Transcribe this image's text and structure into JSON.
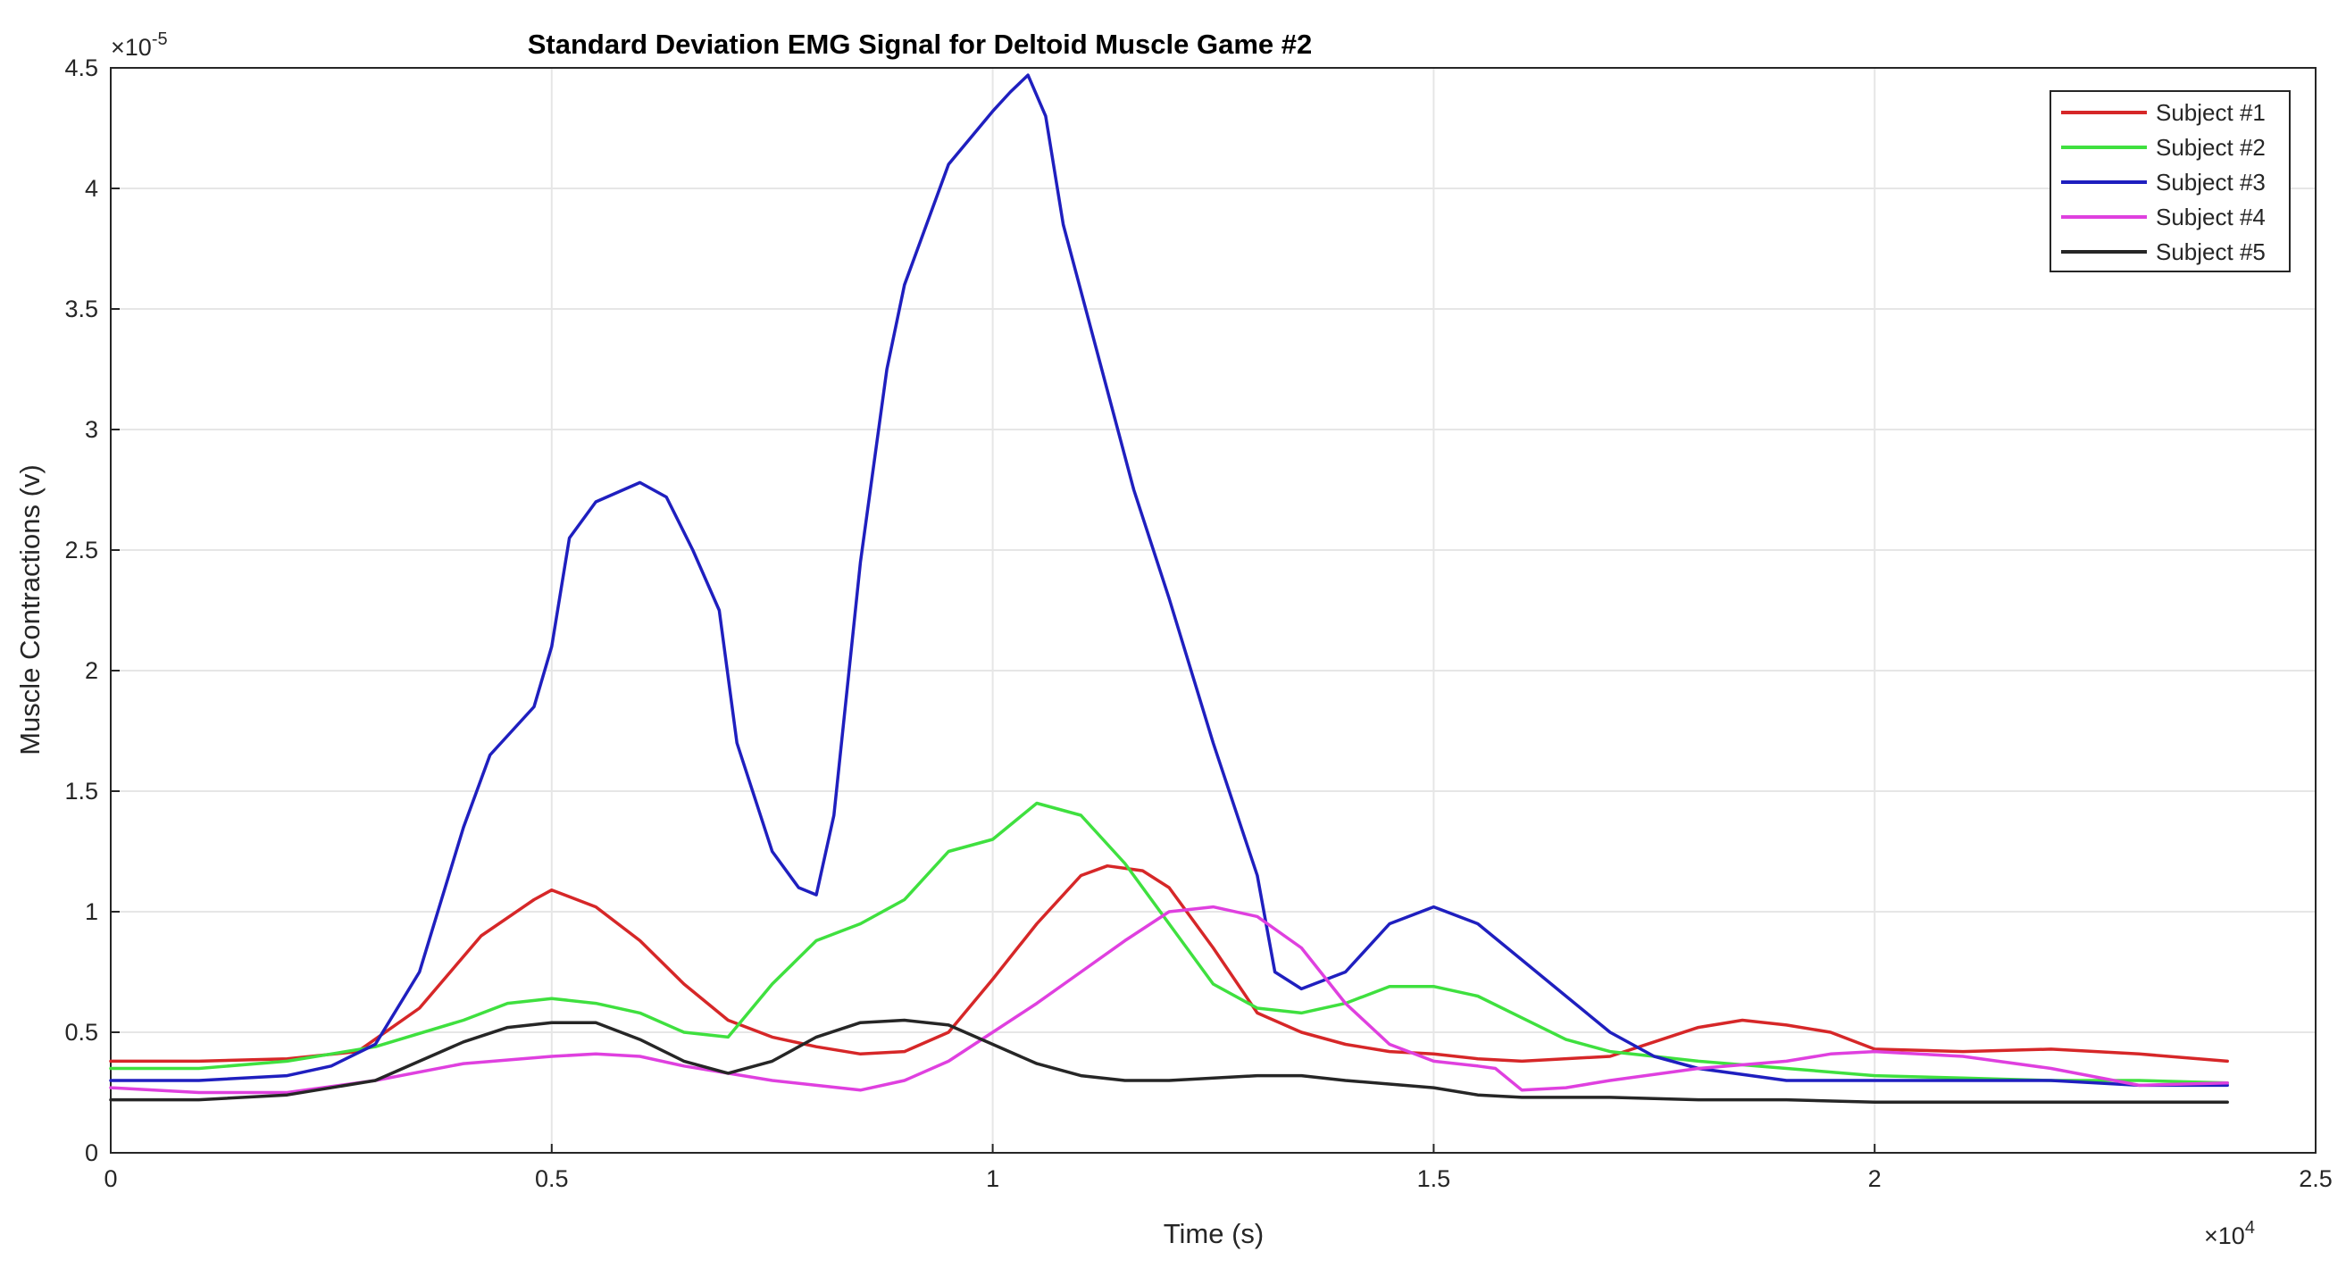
{
  "chart_data": {
    "type": "line",
    "title": "Standard Deviation EMG Signal for Deltoid Muscle Game #2",
    "xlabel": "Time (s)",
    "ylabel": "Muscle Contractions (v)",
    "x_exponent_label": "×10",
    "x_exponent": "4",
    "y_exponent_label": "×10",
    "y_exponent": "-5",
    "xlim": [
      0,
      2.5
    ],
    "ylim": [
      0,
      4.5
    ],
    "x_ticks": [
      "0",
      "0.5",
      "1",
      "1.5",
      "2",
      "2.5"
    ],
    "y_ticks": [
      "0",
      "0.5",
      "1",
      "1.5",
      "2",
      "2.5",
      "3",
      "3.5",
      "4",
      "4.5"
    ],
    "grid": true,
    "legend_position": "top-right",
    "series": [
      {
        "name": "Subject #1",
        "color": "#d62728",
        "x": [
          0,
          0.1,
          0.2,
          0.28,
          0.35,
          0.42,
          0.48,
          0.5,
          0.55,
          0.6,
          0.65,
          0.7,
          0.75,
          0.8,
          0.85,
          0.9,
          0.95,
          1.0,
          1.05,
          1.1,
          1.13,
          1.17,
          1.2,
          1.25,
          1.3,
          1.35,
          1.4,
          1.45,
          1.5,
          1.55,
          1.6,
          1.7,
          1.75,
          1.8,
          1.85,
          1.9,
          1.95,
          2.0,
          2.1,
          2.2,
          2.3,
          2.4
        ],
        "y": [
          0.38,
          0.38,
          0.39,
          0.42,
          0.6,
          0.9,
          1.05,
          1.09,
          1.02,
          0.88,
          0.7,
          0.55,
          0.48,
          0.44,
          0.41,
          0.42,
          0.5,
          0.72,
          0.95,
          1.15,
          1.19,
          1.17,
          1.1,
          0.85,
          0.58,
          0.5,
          0.45,
          0.42,
          0.41,
          0.39,
          0.38,
          0.4,
          0.46,
          0.52,
          0.55,
          0.53,
          0.5,
          0.43,
          0.42,
          0.43,
          0.41,
          0.38
        ]
      },
      {
        "name": "Subject #2",
        "color": "#3fe03f",
        "x": [
          0,
          0.1,
          0.2,
          0.3,
          0.4,
          0.45,
          0.5,
          0.55,
          0.6,
          0.65,
          0.7,
          0.75,
          0.8,
          0.85,
          0.9,
          0.95,
          1.0,
          1.05,
          1.1,
          1.15,
          1.2,
          1.25,
          1.3,
          1.35,
          1.4,
          1.45,
          1.5,
          1.55,
          1.6,
          1.65,
          1.7,
          1.8,
          1.9,
          2.0,
          2.1,
          2.2,
          2.3,
          2.4
        ],
        "y": [
          0.35,
          0.35,
          0.38,
          0.44,
          0.55,
          0.62,
          0.64,
          0.62,
          0.58,
          0.5,
          0.48,
          0.7,
          0.88,
          0.95,
          1.05,
          1.25,
          1.3,
          1.45,
          1.4,
          1.2,
          0.95,
          0.7,
          0.6,
          0.58,
          0.62,
          0.69,
          0.69,
          0.65,
          0.56,
          0.47,
          0.42,
          0.38,
          0.35,
          0.32,
          0.31,
          0.3,
          0.3,
          0.29
        ]
      },
      {
        "name": "Subject #3",
        "color": "#1f1fbf",
        "x": [
          0,
          0.1,
          0.2,
          0.25,
          0.3,
          0.35,
          0.4,
          0.43,
          0.48,
          0.5,
          0.52,
          0.55,
          0.6,
          0.63,
          0.66,
          0.69,
          0.71,
          0.75,
          0.78,
          0.8,
          0.82,
          0.85,
          0.88,
          0.9,
          0.95,
          1.0,
          1.02,
          1.04,
          1.06,
          1.08,
          1.12,
          1.16,
          1.2,
          1.25,
          1.3,
          1.32,
          1.35,
          1.4,
          1.45,
          1.5,
          1.55,
          1.6,
          1.65,
          1.7,
          1.75,
          1.8,
          1.9,
          2.0,
          2.1,
          2.2,
          2.3,
          2.4
        ],
        "y": [
          0.3,
          0.3,
          0.32,
          0.36,
          0.45,
          0.75,
          1.35,
          1.65,
          1.85,
          2.1,
          2.55,
          2.7,
          2.78,
          2.72,
          2.5,
          2.25,
          1.7,
          1.25,
          1.1,
          1.07,
          1.4,
          2.45,
          3.25,
          3.6,
          4.1,
          4.32,
          4.4,
          4.47,
          4.3,
          3.85,
          3.3,
          2.75,
          2.3,
          1.7,
          1.15,
          0.75,
          0.68,
          0.75,
          0.95,
          1.02,
          0.95,
          0.8,
          0.65,
          0.5,
          0.4,
          0.35,
          0.3,
          0.3,
          0.3,
          0.3,
          0.28,
          0.28
        ]
      },
      {
        "name": "Subject #4",
        "color": "#df40df",
        "x": [
          0,
          0.1,
          0.2,
          0.3,
          0.4,
          0.5,
          0.55,
          0.6,
          0.65,
          0.7,
          0.75,
          0.8,
          0.85,
          0.9,
          0.95,
          1.0,
          1.05,
          1.1,
          1.15,
          1.2,
          1.25,
          1.3,
          1.35,
          1.4,
          1.45,
          1.5,
          1.55,
          1.57,
          1.6,
          1.65,
          1.7,
          1.8,
          1.9,
          1.95,
          2.0,
          2.1,
          2.2,
          2.3,
          2.4
        ],
        "y": [
          0.27,
          0.25,
          0.25,
          0.3,
          0.37,
          0.4,
          0.41,
          0.4,
          0.36,
          0.33,
          0.3,
          0.28,
          0.26,
          0.3,
          0.38,
          0.5,
          0.62,
          0.75,
          0.88,
          1.0,
          1.02,
          0.98,
          0.85,
          0.62,
          0.45,
          0.38,
          0.36,
          0.35,
          0.26,
          0.27,
          0.3,
          0.35,
          0.38,
          0.41,
          0.42,
          0.4,
          0.35,
          0.28,
          0.29
        ]
      },
      {
        "name": "Subject #5",
        "color": "#262626",
        "x": [
          0,
          0.1,
          0.2,
          0.3,
          0.35,
          0.4,
          0.45,
          0.5,
          0.55,
          0.6,
          0.65,
          0.7,
          0.75,
          0.8,
          0.85,
          0.9,
          0.95,
          1.0,
          1.05,
          1.1,
          1.15,
          1.2,
          1.3,
          1.35,
          1.4,
          1.5,
          1.55,
          1.6,
          1.7,
          1.8,
          1.9,
          2.0,
          2.1,
          2.2,
          2.3,
          2.4
        ],
        "y": [
          0.22,
          0.22,
          0.24,
          0.3,
          0.38,
          0.46,
          0.52,
          0.54,
          0.54,
          0.47,
          0.38,
          0.33,
          0.38,
          0.48,
          0.54,
          0.55,
          0.53,
          0.45,
          0.37,
          0.32,
          0.3,
          0.3,
          0.32,
          0.32,
          0.3,
          0.27,
          0.24,
          0.23,
          0.23,
          0.22,
          0.22,
          0.21,
          0.21,
          0.21,
          0.21,
          0.21
        ]
      }
    ]
  }
}
